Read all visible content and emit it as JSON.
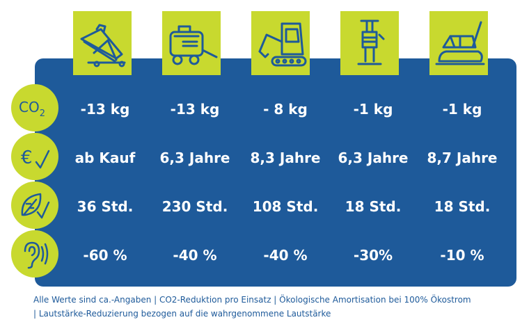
{
  "machines": [
    {
      "icon": "conveyor-belt-icon"
    },
    {
      "icon": "compressor-icon"
    },
    {
      "icon": "mini-excavator-icon"
    },
    {
      "icon": "rammer-icon"
    },
    {
      "icon": "vibratory-plate-icon"
    }
  ],
  "rows": [
    {
      "icon": "co2-icon",
      "icon_text": "CO",
      "icon_sub": "2",
      "values": [
        "-13 kg",
        "-13 kg",
        "- 8 kg",
        "-1 kg",
        "-1 kg"
      ]
    },
    {
      "icon": "euro-check-icon",
      "icon_text": "€",
      "values": [
        "ab Kauf",
        "6,3 Jahre",
        "8,3 Jahre",
        "6,3 Jahre",
        "8,7 Jahre"
      ]
    },
    {
      "icon": "leaf-check-icon",
      "values": [
        "36 Std.",
        "230 Std.",
        "108 Std.",
        "18 Std.",
        "18 Std."
      ]
    },
    {
      "icon": "ear-sound-icon",
      "values": [
        "-60 %",
        "-40 %",
        "-40 %",
        "-30%",
        "-10 %"
      ]
    }
  ],
  "footnote": {
    "line1": "Alle Werte sind ca.-Angaben | CO2-Reduktion pro Einsatz | Ökologische Amortisation bei 100% Ökostrom",
    "line2": "| Lautstärke-Reduzierung bezogen auf die wahrgenommene Lautstärke"
  },
  "colors": {
    "panel": "#1e5a9a",
    "accent": "#c8d92f",
    "text": "#ffffff"
  }
}
